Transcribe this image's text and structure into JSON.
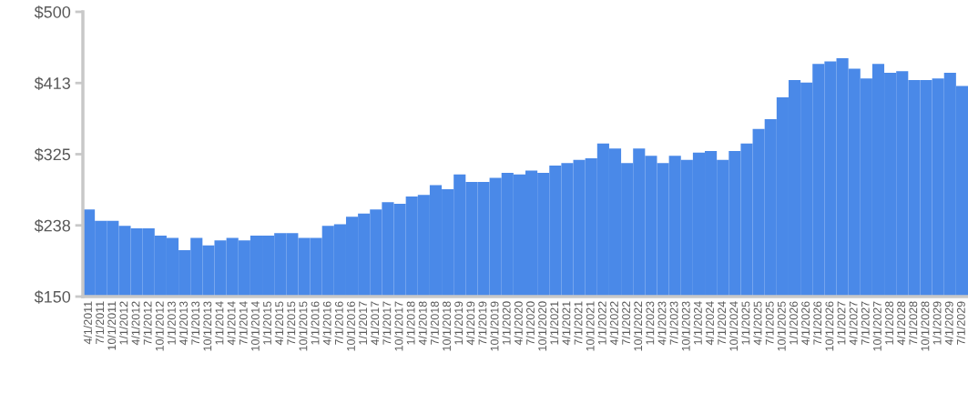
{
  "chart_data": {
    "type": "bar",
    "color": "#4a89e8",
    "categories": [
      "4/1/2011",
      "7/1/2011",
      "10/1/2011",
      "1/1/2012",
      "4/1/2012",
      "7/1/2012",
      "10/1/2012",
      "1/1/2013",
      "4/1/2013",
      "7/1/2013",
      "10/1/2013",
      "1/1/2014",
      "4/1/2014",
      "7/1/2014",
      "10/1/2014",
      "1/1/2015",
      "4/1/2015",
      "7/1/2015",
      "10/1/2015",
      "1/1/2016",
      "4/1/2016",
      "7/1/2016",
      "10/1/2016",
      "1/1/2017",
      "4/1/2017",
      "7/1/2017",
      "10/1/2017",
      "1/1/2018",
      "4/1/2018",
      "7/1/2018",
      "10/1/2018",
      "1/1/2019",
      "4/1/2019",
      "7/1/2019",
      "10/1/2019",
      "1/1/2020",
      "4/1/2020",
      "7/1/2020",
      "10/1/2020",
      "1/1/2021",
      "4/1/2021",
      "7/1/2021",
      "10/1/2021",
      "1/1/2022",
      "4/1/2022",
      "7/1/2022",
      "10/1/2022",
      "1/1/2023",
      "4/1/2023",
      "7/1/2023",
      "10/1/2023",
      "1/1/2024",
      "4/1/2024",
      "7/1/2024",
      "10/1/2024",
      "1/1/2025",
      "4/1/2025",
      "7/1/2025",
      "10/1/2025",
      "1/1/2026",
      "4/1/2026",
      "7/1/2026",
      "10/1/2026",
      "1/1/2027",
      "4/1/2027",
      "7/1/2027",
      "10/1/2027",
      "1/1/2028",
      "4/1/2028",
      "7/1/2028",
      "10/1/2028",
      "1/1/2029",
      "4/1/2029",
      "7/1/2029"
    ],
    "values": [
      257,
      243,
      243,
      237,
      234,
      234,
      225,
      222,
      207,
      222,
      213,
      219,
      222,
      219,
      225,
      225,
      228,
      228,
      222,
      222,
      237,
      239,
      248,
      252,
      257,
      266,
      264,
      273,
      275,
      287,
      282,
      300,
      291,
      291,
      296,
      302,
      300,
      305,
      302,
      311,
      314,
      318,
      320,
      338,
      332,
      314,
      332,
      323,
      314,
      323,
      318,
      327,
      329,
      318,
      329,
      338,
      356,
      368,
      395,
      416,
      413,
      436,
      439,
      443,
      430,
      418,
      436,
      425,
      427,
      416,
      416,
      418,
      425,
      409
    ],
    "ylim": [
      150,
      500
    ],
    "yticks": [
      {
        "value": 150,
        "label": "$150"
      },
      {
        "value": 237.5,
        "label": "$238"
      },
      {
        "value": 325,
        "label": "$325"
      },
      {
        "value": 412.5,
        "label": "$413"
      },
      {
        "value": 500,
        "label": "$500"
      }
    ],
    "grid": false,
    "legend": false
  }
}
